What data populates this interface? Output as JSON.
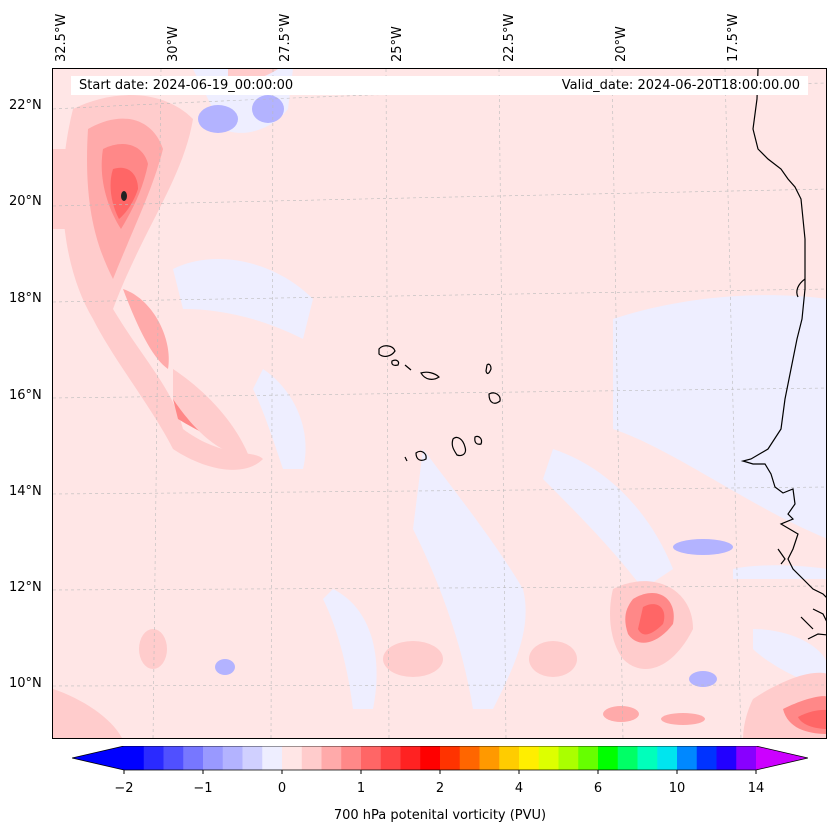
{
  "header": {
    "start_date": "Start date: 2024-06-19_00:00:00",
    "valid_date": "Valid_date: 2024-06-20T18:00:00.00"
  },
  "axes": {
    "lon_labels": [
      "32.5°W",
      "30°W",
      "27.5°W",
      "25°W",
      "22.5°W",
      "20°W",
      "17.5°W"
    ],
    "lat_labels": [
      "22°N",
      "20°N",
      "18°N",
      "16°N",
      "14°N",
      "12°N",
      "10°N"
    ]
  },
  "colorbar": {
    "label": "700 hPa potenital vorticity (PVU)",
    "tick_labels": [
      "−2",
      "−1",
      "0",
      "1",
      "2",
      "4",
      "6",
      "10",
      "14"
    ],
    "tick_values": [
      -2,
      -1,
      0,
      1,
      2,
      4,
      6,
      10,
      14
    ],
    "colors": [
      "#0000ff",
      "#2a2aff",
      "#5050ff",
      "#7777ff",
      "#9999ff",
      "#b3b3ff",
      "#d0d0ff",
      "#eeeeff",
      "#ffe6e6",
      "#ffcccc",
      "#ffaaaa",
      "#ff8888",
      "#ff6666",
      "#ff4444",
      "#ff2222",
      "#ff0000",
      "#ff3300",
      "#ff6600",
      "#ff9900",
      "#ffcc00",
      "#ffee00",
      "#ddff00",
      "#aaff00",
      "#66ff00",
      "#00ff00",
      "#00ff66",
      "#00ffbb",
      "#00e5ee",
      "#0088ff",
      "#0033ff",
      "#2200ff",
      "#8800ff"
    ],
    "under_color": "#0000ff",
    "over_color": "#cc00ff"
  }
}
